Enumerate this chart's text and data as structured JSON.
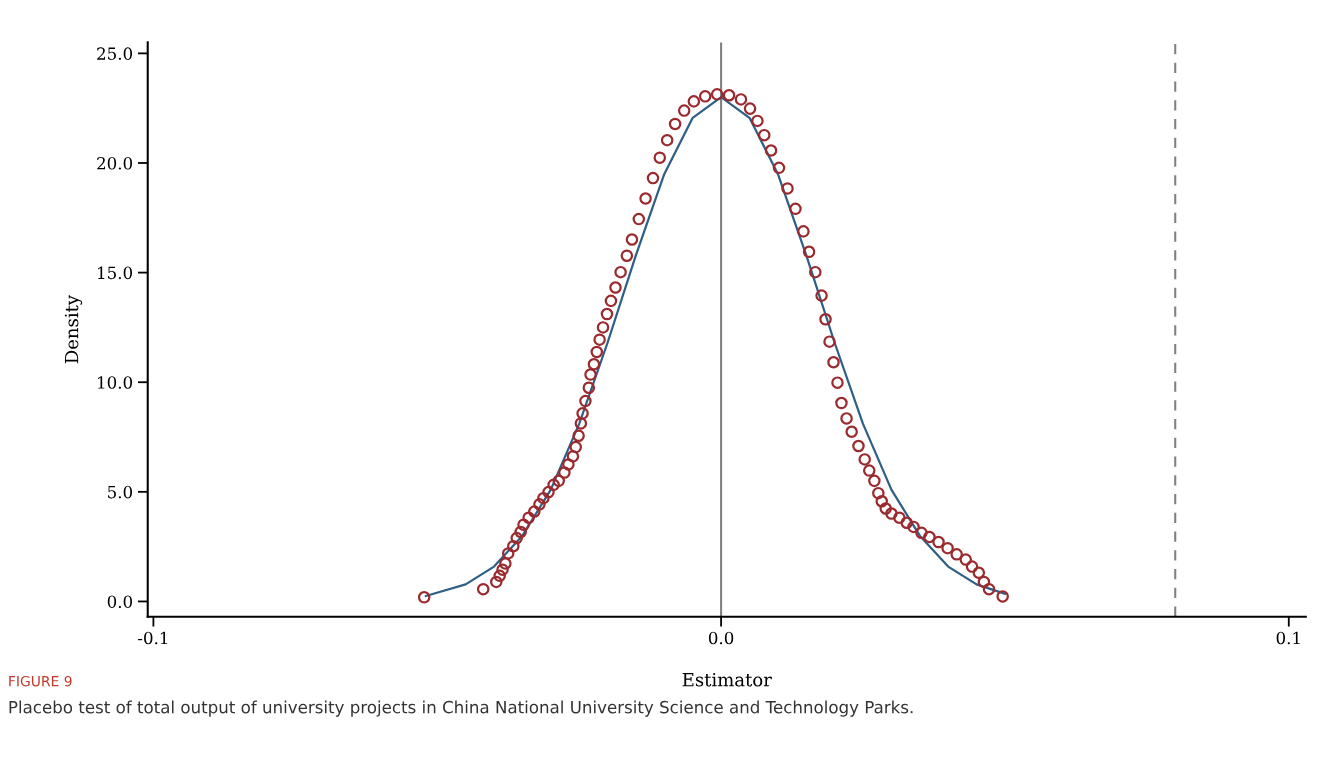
{
  "chart_data": {
    "type": "scatter",
    "xlabel": "Estimator",
    "ylabel": "Density",
    "xlim": [
      -0.101,
      0.103
    ],
    "ylim": [
      -0.7,
      25.5
    ],
    "xticks": [
      {
        "value": -0.1,
        "label": "-0.1"
      },
      {
        "value": 0,
        "label": "0.0"
      },
      {
        "value": 0.1,
        "label": "0.1"
      }
    ],
    "yticks": [
      {
        "value": 0,
        "label": "0.0"
      },
      {
        "value": 5,
        "label": "5.0"
      },
      {
        "value": 10,
        "label": "10.0"
      },
      {
        "value": 15,
        "label": "15.0"
      },
      {
        "value": 20,
        "label": "20.0"
      },
      {
        "value": 25,
        "label": "25.0"
      }
    ],
    "grid": false,
    "legend": false,
    "series": [
      {
        "type": "line",
        "marker": "none",
        "color": "#2e5f86",
        "x": [
          -0.052,
          -0.045,
          -0.04,
          -0.035,
          -0.03,
          -0.025,
          -0.02,
          -0.015,
          -0.01,
          -0.005,
          0,
          0.005,
          0.01,
          0.015,
          0.02,
          0.025,
          0.03,
          0.035,
          0.04,
          0.045,
          0.05
        ],
        "values": [
          0.25,
          0.78,
          1.59,
          3.0,
          5.1,
          8.1,
          11.8,
          15.8,
          19.5,
          22.06,
          23.0,
          22.06,
          19.5,
          15.8,
          11.8,
          8.1,
          5.1,
          3.0,
          1.59,
          0.78,
          0.35
        ]
      },
      {
        "marker": "circle",
        "color": "#9b2a2f",
        "x": [
          -0.0523,
          -0.0419,
          -0.0396,
          -0.039,
          -0.0385,
          -0.038,
          -0.0375,
          -0.0366,
          -0.036,
          -0.0353,
          -0.0348,
          -0.0339,
          -0.0329,
          -0.032,
          -0.0313,
          -0.0304,
          -0.0295,
          -0.0286,
          -0.0276,
          -0.0269,
          -0.0261,
          -0.0256,
          -0.0251,
          -0.0247,
          -0.0244,
          -0.0239,
          -0.0233,
          -0.023,
          -0.0224,
          -0.0219,
          -0.0214,
          -0.0208,
          -0.0201,
          -0.0194,
          -0.0186,
          -0.0177,
          -0.0166,
          -0.0157,
          -0.0145,
          -0.0133,
          -0.012,
          -0.0108,
          -0.0095,
          -0.0081,
          -0.0065,
          -0.0048,
          -0.0028,
          -0.0007,
          0.0014,
          0.0035,
          0.0051,
          0.0064,
          0.0076,
          0.0088,
          0.0102,
          0.0117,
          0.0131,
          0.0145,
          0.0155,
          0.0166,
          0.0177,
          0.0184,
          0.0191,
          0.0198,
          0.0205,
          0.0212,
          0.0221,
          0.023,
          0.0242,
          0.0253,
          0.0261,
          0.027,
          0.0277,
          0.0283,
          0.029,
          0.03,
          0.0314,
          0.0327,
          0.0339,
          0.0353,
          0.0367,
          0.0383,
          0.0399,
          0.0415,
          0.0431,
          0.0442,
          0.0454,
          0.0463,
          0.0472,
          0.0496
        ],
        "values": [
          0.19,
          0.56,
          0.89,
          1.17,
          1.45,
          1.73,
          2.19,
          2.52,
          2.89,
          3.17,
          3.5,
          3.82,
          4.1,
          4.43,
          4.71,
          4.99,
          5.32,
          5.5,
          5.88,
          6.25,
          6.62,
          7.04,
          7.56,
          8.12,
          8.58,
          9.14,
          9.75,
          10.35,
          10.82,
          11.38,
          11.94,
          12.5,
          13.11,
          13.71,
          14.32,
          15.02,
          15.77,
          16.51,
          17.44,
          18.38,
          19.31,
          20.24,
          21.04,
          21.78,
          22.39,
          22.81,
          23.04,
          23.13,
          23.09,
          22.9,
          22.48,
          21.92,
          21.27,
          20.57,
          19.78,
          18.84,
          17.91,
          16.88,
          15.95,
          15.02,
          13.95,
          12.87,
          11.85,
          10.91,
          9.98,
          9.05,
          8.35,
          7.74,
          7.09,
          6.48,
          5.97,
          5.5,
          4.94,
          4.57,
          4.24,
          4.01,
          3.82,
          3.59,
          3.4,
          3.13,
          2.94,
          2.71,
          2.43,
          2.15,
          1.91,
          1.59,
          1.31,
          0.89,
          0.56,
          0.23
        ]
      }
    ],
    "ref_lines": [
      {
        "axis": "x",
        "value": 0,
        "color": "#808080",
        "line_style": "solid"
      },
      {
        "axis": "x",
        "value": 0.08,
        "color": "#808080",
        "line_style": "dashed"
      }
    ],
    "annotations": [
      "FIGURE 9",
      "Placebo test of total output of university projects in China National University Science and Technology Parks."
    ]
  }
}
